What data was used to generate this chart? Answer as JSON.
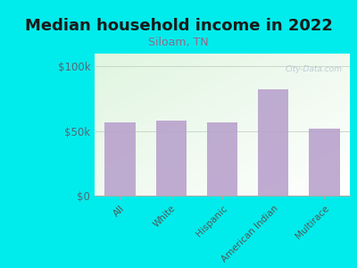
{
  "title": "Median household income in 2022",
  "subtitle": "Siloam, TN",
  "categories": [
    "All",
    "White",
    "Hispanic",
    "American Indian",
    "Multirace"
  ],
  "values": [
    57000,
    58000,
    56500,
    82000,
    52000
  ],
  "bar_color": "#b8a0cc",
  "background_outer": "#00ecec",
  "background_chart_top": "#d8ecd8",
  "background_chart_bottom": "#f5fff8",
  "title_fontsize": 13,
  "subtitle_fontsize": 9,
  "subtitle_color": "#996688",
  "tick_label_color": "#555555",
  "ytick_label_color": "#556677",
  "ylim": [
    0,
    110000
  ],
  "yticks": [
    0,
    50000,
    100000
  ],
  "ytick_labels": [
    "$0",
    "$50k",
    "$100k"
  ],
  "watermark": "City-Data.com"
}
